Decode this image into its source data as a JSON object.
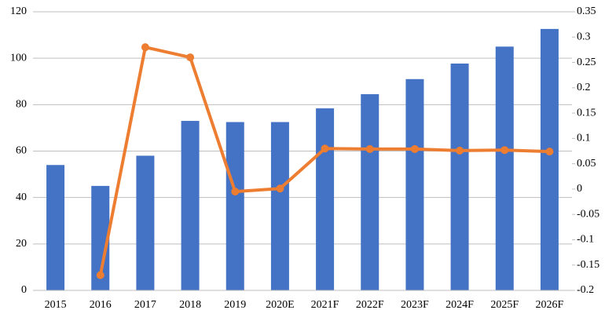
{
  "chart_data": {
    "type": "bar",
    "categories": [
      "2015",
      "2016",
      "2017",
      "2018",
      "2019",
      "2020E",
      "2021F",
      "2022F",
      "2023F",
      "2024F",
      "2025F",
      "2026F"
    ],
    "series": [
      {
        "type": "bar",
        "color": "#4472c4",
        "values": [
          54,
          45,
          58,
          73,
          72.5,
          72.5,
          78.4,
          84.5,
          91,
          97.7,
          105,
          112.6
        ]
      },
      {
        "type": "line",
        "axis": "y2",
        "color": "#ed7d31",
        "values": [
          null,
          -0.17,
          0.28,
          0.26,
          -0.005,
          0.001,
          0.08,
          0.079,
          0.079,
          0.076,
          0.077,
          0.074
        ]
      }
    ],
    "ylim": [
      0,
      120
    ],
    "yticks": [
      0,
      20,
      40,
      60,
      80,
      100,
      120
    ],
    "y2lim": [
      -0.2,
      0.35
    ],
    "y2ticks": [
      -0.2,
      -0.15,
      -0.1,
      -0.05,
      0,
      0.05,
      0.1,
      0.15,
      0.2,
      0.25,
      0.3,
      0.35
    ],
    "grid": true
  }
}
